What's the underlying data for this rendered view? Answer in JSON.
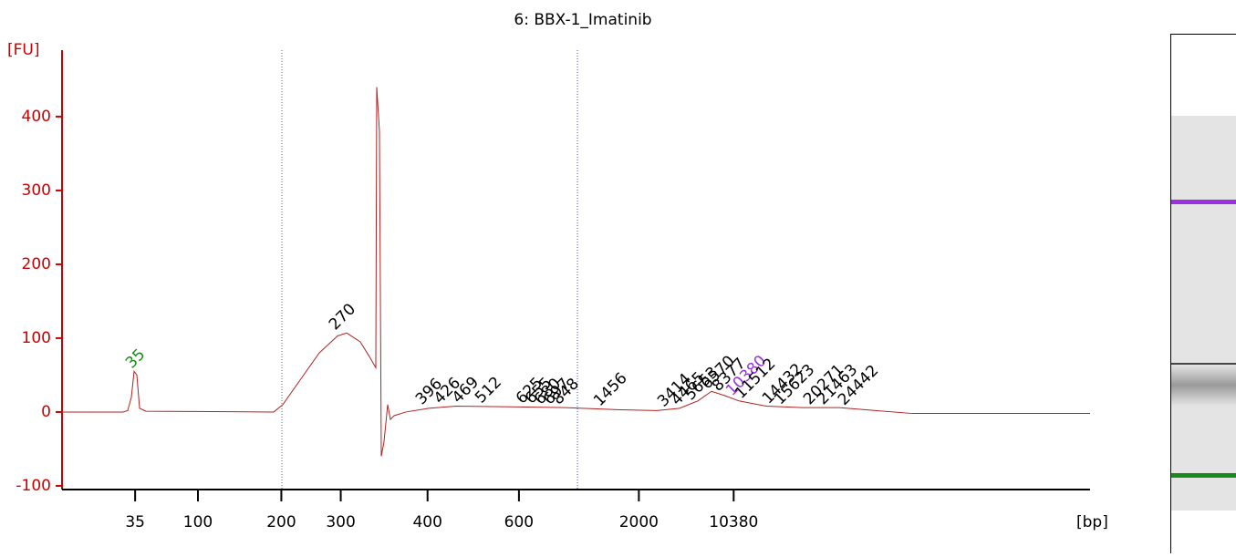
{
  "chart_data": {
    "type": "line",
    "title": "6: BBX-1_Imatinib",
    "y_label": "[FU]",
    "x_label": "[bp]",
    "color": "#b22222",
    "axis_color": "#cc0000",
    "x": [
      40.0,
      45.35,
      45.75,
      46.07,
      46.31,
      46.55,
      46.79,
      47.35,
      58.53,
      59.33,
      60.92,
      62.52,
      64.12,
      64.92,
      66.11,
      66.91,
      67.47,
      67.55,
      67.79,
      67.95,
      68.19,
      68.51,
      68.75,
      69.07,
      70.11,
      72.1,
      74.5,
      79.29,
      84.08,
      88.87,
      92.07,
      94.06,
      95.66,
      96.86,
      98.06,
      99.26,
      101.65,
      104.84,
      108.04,
      111.23,
      114.43,
      122.41,
      130.0
    ],
    "values": [
      0,
      0,
      2,
      20,
      55,
      50,
      5,
      1,
      0,
      10,
      45,
      80,
      103,
      107,
      95,
      75,
      60,
      440,
      380,
      -60,
      -40,
      10,
      -10,
      -5,
      0,
      5,
      8,
      7,
      6,
      3,
      2,
      5,
      15,
      28,
      22,
      15,
      8,
      6,
      6,
      2,
      -2,
      -2,
      -2
    ],
    "xlim": [
      40,
      130
    ],
    "ylim": [
      -105,
      490
    ],
    "yticks": [
      -100,
      0,
      100,
      200,
      300,
      400
    ],
    "xticks": [
      {
        "value": 46.4,
        "label": "35"
      },
      {
        "value": 51.9,
        "label": "100"
      },
      {
        "value": 59.2,
        "label": "200"
      },
      {
        "value": 64.4,
        "label": "300"
      },
      {
        "value": 72.0,
        "label": "400"
      },
      {
        "value": 80.0,
        "label": "600"
      },
      {
        "value": 90.5,
        "label": "2000"
      },
      {
        "value": 98.8,
        "label": "10380"
      }
    ],
    "peaks": [
      {
        "size": 35,
        "x": 46.31,
        "y": 55,
        "color": "#1a8a1a"
      },
      {
        "size": 270,
        "x": 64.12,
        "y": 107
      },
      {
        "size": 396,
        "x": 71.7,
        "y": 6
      },
      {
        "size": 426,
        "x": 73.3,
        "y": 7
      },
      {
        "size": 469,
        "x": 74.9,
        "y": 8
      },
      {
        "size": 512,
        "x": 76.9,
        "y": 8
      },
      {
        "size": 625,
        "x": 80.49,
        "y": 7
      },
      {
        "size": 655,
        "x": 81.29,
        "y": 7
      },
      {
        "size": 680,
        "x": 82.09,
        "y": 6
      },
      {
        "size": 697,
        "x": 82.89,
        "y": 6
      },
      {
        "size": 848,
        "x": 83.68,
        "y": 6
      },
      {
        "size": 1456,
        "x": 87.28,
        "y": 4
      },
      {
        "size": 3414,
        "x": 92.87,
        "y": 3
      },
      {
        "size": 4465,
        "x": 94.06,
        "y": 5
      },
      {
        "size": 5653,
        "x": 95.26,
        "y": 12
      },
      {
        "size": 6570,
        "x": 96.7,
        "y": 27
      },
      {
        "size": 8377,
        "x": 97.66,
        "y": 24
      },
      {
        "size": 10380,
        "x": 98.86,
        "y": 18,
        "color": "#9a30e0"
      },
      {
        "size": 11512,
        "x": 99.66,
        "y": 14
      },
      {
        "size": 14432,
        "x": 102.05,
        "y": 7
      },
      {
        "size": 15623,
        "x": 103.09,
        "y": 6
      },
      {
        "size": 20271,
        "x": 105.65,
        "y": 6
      },
      {
        "size": 21463,
        "x": 106.84,
        "y": 6
      },
      {
        "size": 24442,
        "x": 108.68,
        "y": 5
      }
    ]
  }
}
